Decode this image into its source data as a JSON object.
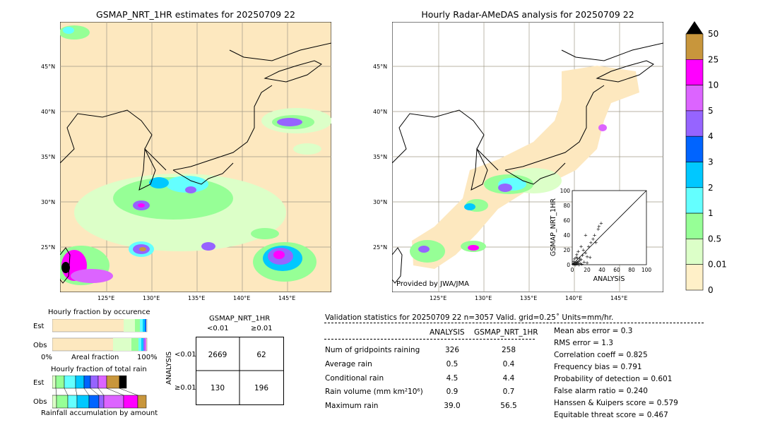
{
  "left_map": {
    "title": "GSMAP_NRT_1HR estimates for 20250709 22",
    "lat_labels": [
      "45°N",
      "40°N",
      "35°N",
      "30°N",
      "25°N"
    ],
    "lon_labels": [
      "125°E",
      "130°E",
      "135°E",
      "140°E",
      "145°E"
    ]
  },
  "right_map": {
    "title": "Hourly Radar-AMeDAS analysis for 20250709 22",
    "lat_labels": [
      "45°N",
      "40°N",
      "35°N",
      "30°N",
      "25°N"
    ],
    "lon_labels": [
      "125°E",
      "130°E",
      "135°E",
      "140°E",
      "145°E"
    ],
    "credit": "Provided by JWA/JMA"
  },
  "colorbar": {
    "labels": [
      "50",
      "25",
      "10",
      "5",
      "4",
      "3",
      "2",
      "1",
      "0.5",
      "0.01",
      "0"
    ],
    "colors": [
      "#c8963c",
      "#ff00ff",
      "#dc64ff",
      "#9664ff",
      "#0064ff",
      "#00c8ff",
      "#64ffff",
      "#96ff96",
      "#dcffc8",
      "#fff0c8"
    ]
  },
  "occurrence": {
    "title": "Hourly fraction by occurence",
    "est_label": "Est",
    "obs_label": "Obs",
    "axis_left": "0%",
    "axis_mid": "Areal fraction",
    "axis_right": "100%"
  },
  "total_rain": {
    "title": "Hourly fraction of total rain",
    "est_label": "Est",
    "obs_label": "Obs",
    "footer": "Rainfall accumulation by amount"
  },
  "contingency": {
    "title": "GSMAP_NRT_1HR",
    "col_lt": "<0.01",
    "col_ge": "≥0.01",
    "row_axis": "ANALYSIS",
    "row_lt": "<0.01",
    "row_ge": "≥0.01",
    "a": "2669",
    "b": "62",
    "c": "130",
    "d": "196"
  },
  "validation": {
    "header": "Validation statistics for 20250709 22  n=3057 Valid. grid=0.25˚ Units=mm/hr.",
    "col_analysis": "ANALYSIS",
    "col_gsmap": "GSMAP_NRT_1HR",
    "rows": [
      {
        "label": "Num of gridpoints raining",
        "analysis": "326",
        "gsmap": "258"
      },
      {
        "label": "Average rain",
        "analysis": "0.5",
        "gsmap": "0.4"
      },
      {
        "label": "Conditional rain",
        "analysis": "4.5",
        "gsmap": "4.4"
      },
      {
        "label": "Rain volume (mm km²10⁶)",
        "analysis": "0.9",
        "gsmap": "0.7"
      },
      {
        "label": "Maximum rain",
        "analysis": "39.0",
        "gsmap": "56.5"
      }
    ],
    "scores": [
      "Mean abs error =    0.3",
      "RMS error =    1.3",
      "Correlation coeff =  0.825",
      "Frequency bias =  0.791",
      "Probability of detection =  0.601",
      "False alarm ratio =  0.240",
      "Hanssen & Kuipers score =  0.579",
      "Equitable threat score =  0.467"
    ]
  },
  "chart_data": {
    "type": "scatter",
    "title": "",
    "xlabel": "ANALYSIS",
    "ylabel": "GSMAP_NRT_1HR",
    "xlim": [
      0,
      100
    ],
    "ylim": [
      0,
      100
    ],
    "x_ticks": [
      "0",
      "20",
      "40",
      "60",
      "80",
      "100"
    ],
    "y_ticks": [
      "0",
      "20",
      "40",
      "60",
      "80",
      "100"
    ],
    "points": [
      [
        1,
        1
      ],
      [
        2,
        2
      ],
      [
        3,
        1
      ],
      [
        4,
        3
      ],
      [
        5,
        2
      ],
      [
        6,
        4
      ],
      [
        7,
        3
      ],
      [
        8,
        5
      ],
      [
        9,
        2
      ],
      [
        10,
        6
      ],
      [
        2,
        5
      ],
      [
        3,
        8
      ],
      [
        5,
        10
      ],
      [
        6,
        14
      ],
      [
        8,
        18
      ],
      [
        10,
        9
      ],
      [
        12,
        7
      ],
      [
        14,
        13
      ],
      [
        15,
        20
      ],
      [
        18,
        16
      ],
      [
        20,
        11
      ],
      [
        22,
        25
      ],
      [
        25,
        30
      ],
      [
        28,
        35
      ],
      [
        30,
        40
      ],
      [
        35,
        48
      ],
      [
        39,
        56
      ],
      [
        16,
        4
      ],
      [
        13,
        1
      ],
      [
        11,
        2
      ],
      [
        9,
        0
      ],
      [
        4,
        0
      ],
      [
        6,
        1
      ],
      [
        12,
        25
      ],
      [
        18,
        40
      ],
      [
        24,
        10
      ],
      [
        32,
        30
      ],
      [
        36,
        52
      ],
      [
        20,
        3
      ],
      [
        7,
        9
      ]
    ]
  }
}
